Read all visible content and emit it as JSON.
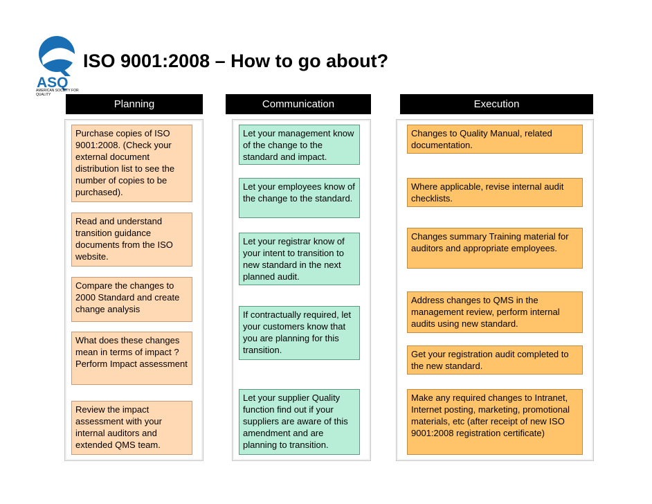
{
  "logo": {
    "letters": "ASQ",
    "subtitle": "AMERICAN SOCIETY FOR QUALITY"
  },
  "title": "ISO 9001:2008 – How to go about?",
  "columns": {
    "planning": {
      "header": "Planning",
      "items": [
        "Purchase copies of ISO 9001:2008. (Check your external document distribution list to see the number of copies to be purchased).",
        "Read and understand transition guidance documents from the ISO website.",
        "Compare the changes to 2000 Standard and create change analysis",
        "What does these changes mean in terms of impact ? Perform Impact assessment",
        "Review the impact assessment with your internal auditors and extended QMS team."
      ]
    },
    "communication": {
      "header": "Communication",
      "items": [
        "Let your management know of the change to the standard and impact.",
        "Let your employees know of the change to the standard.",
        "Let your registrar know of your intent to transition to new standard in the next planned audit.",
        "If contractually required, let your customers know that you are planning for this transition.",
        "Let your supplier Quality function find out if your suppliers are aware of this amendment and are planning to transition."
      ]
    },
    "execution": {
      "header": "Execution",
      "items": [
        "Changes to Quality Manual, related documentation.",
        "Where applicable, revise internal audit checklists.",
        "Changes summary Training material for auditors and appropriate employees.",
        "Address changes to QMS in the management review, perform internal audits using new standard.",
        "Get your registration audit completed to the new standard.",
        "Make any required changes to Intranet, Internet posting, marketing, promotional materials, etc (after receipt of new ISO 9001:2008 registration certificate)"
      ]
    }
  },
  "colors": {
    "planning_fill": "#ffd9b3",
    "communication_fill": "#b8eed8",
    "execution_fill": "#ffc46a",
    "header_fill": "#000000",
    "logo_blue": "#1a6fb4"
  }
}
